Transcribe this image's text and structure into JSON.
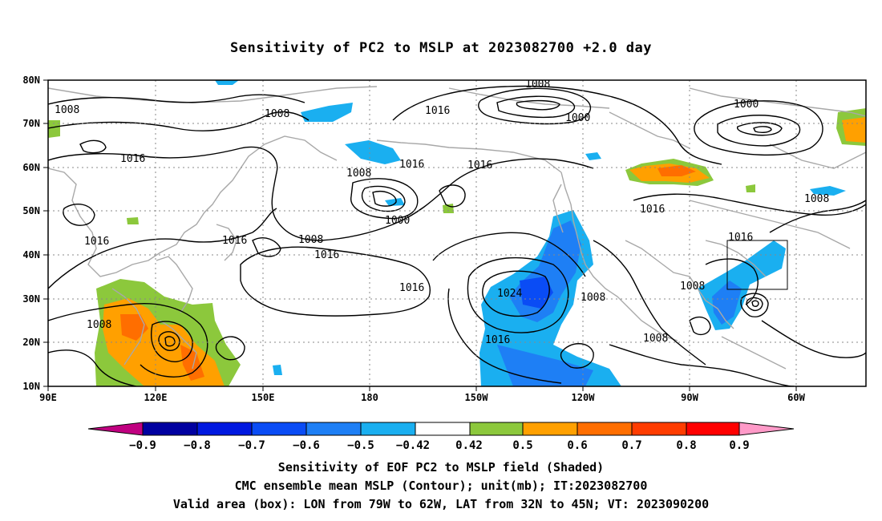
{
  "title": "Sensitivity of PC2 to MSLP at 2023082700 +2.0 day",
  "lat_labels": [
    "80N",
    "70N",
    "60N",
    "50N",
    "40N",
    "30N",
    "20N",
    "10N"
  ],
  "lon_labels": [
    "90E",
    "120E",
    "150E",
    "180",
    "150W",
    "120W",
    "90W",
    "60W"
  ],
  "contour_labels": {
    "a": "1008",
    "b": "1008",
    "c": "1016",
    "d": "1008",
    "e": "1000",
    "f": "1000",
    "g": "1016",
    "h": "1016",
    "i": "1008",
    "j": "1016",
    "k": "1000",
    "l": "1008",
    "m": "1016",
    "n": "1016",
    "o": "1016",
    "p": "1008",
    "q": "1016",
    "r": "1016",
    "s": "1016",
    "t": "1024",
    "u": "1008",
    "v": "1008",
    "w": "1008",
    "x": "1008",
    "y": "1016",
    "z": "1016"
  },
  "colorbar": {
    "labels": [
      "−0.9",
      "−0.8",
      "−0.7",
      "−0.6",
      "−0.5",
      "−0.42",
      "0.42",
      "0.5",
      "0.6",
      "0.7",
      "0.8",
      "0.9"
    ],
    "colors": [
      "#0000a0",
      "#0018e0",
      "#0a4cf5",
      "#1e7ff5",
      "#1aaff0",
      "#ffffff",
      "#8cc83c",
      "#ffa000",
      "#ff6e00",
      "#ff3c00",
      "#ff0000"
    ],
    "left_tip_color": "#c00080",
    "right_tip_color": "#ff9ac8"
  },
  "captions": {
    "line1": "Sensitivity of EOF PC2 to MSLP field (Shaded)",
    "line2": "CMC ensemble mean MSLP (Contour); unit(mb); IT:2023082700",
    "line3": "Valid area (box): LON from 79W to 62W, LAT from 32N to 45N; VT: 2023090200"
  },
  "valid_area": {
    "lon_from": "79W",
    "lon_to": "62W",
    "lat_from": "32N",
    "lat_to": "45N"
  }
}
